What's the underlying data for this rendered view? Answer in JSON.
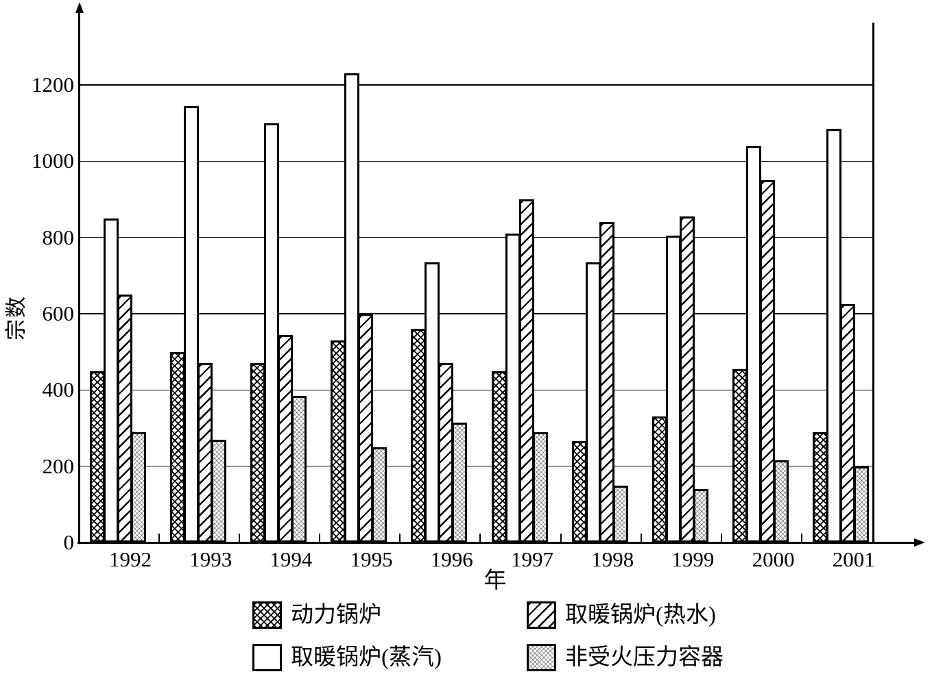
{
  "chart_data": {
    "type": "bar",
    "title": "",
    "xlabel": "年",
    "ylabel": "宗数",
    "ylim": [
      0,
      1300
    ],
    "yticks": [
      0,
      200,
      400,
      600,
      800,
      1000,
      1200
    ],
    "grid": "horizontal",
    "legend_position": "bottom, 2 columns x 2 rows",
    "categories": [
      "1992",
      "1993",
      "1994",
      "1995",
      "1996",
      "1997",
      "1998",
      "1999",
      "2000",
      "2001"
    ],
    "series": [
      {
        "key": "power-boiler",
        "name": "动力锅炉",
        "pattern": "dense-crosshatch",
        "values": [
          450,
          500,
          470,
          530,
          560,
          450,
          265,
          330,
          455,
          290
        ]
      },
      {
        "key": "heating-boiler-steam",
        "name": "取暖锅炉(蒸汽)",
        "pattern": "plain-white",
        "values": [
          850,
          1145,
          1100,
          1230,
          735,
          810,
          735,
          805,
          1040,
          1085
        ]
      },
      {
        "key": "heating-boiler-hotwater",
        "name": "取暖锅炉(热水)",
        "pattern": "diagonal-hatch",
        "values": [
          650,
          470,
          545,
          600,
          470,
          900,
          840,
          855,
          950,
          625
        ]
      },
      {
        "key": "non-fired-pressure-vessel",
        "name": "非受火压力容器",
        "pattern": "light-crosshatch",
        "values": [
          290,
          270,
          385,
          250,
          315,
          290,
          150,
          140,
          215,
          200
        ]
      }
    ],
    "legend_order": [
      "power-boiler",
      "heating-boiler-hotwater",
      "heating-boiler-steam",
      "non-fired-pressure-vessel"
    ]
  },
  "colors": {
    "ink": "#000000",
    "background": "#ffffff",
    "light_hatch_line": "#949494"
  }
}
